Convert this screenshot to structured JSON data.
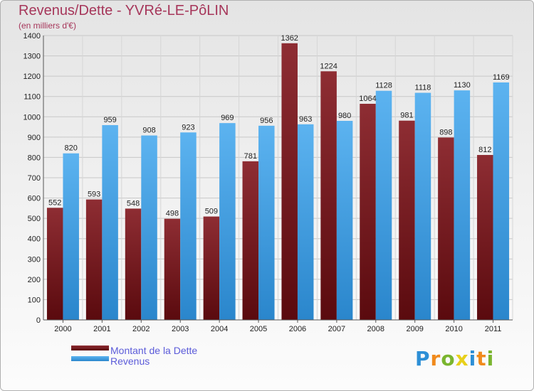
{
  "chart_data": {
    "type": "bar",
    "title": "Revenus/Dette - YVRé-LE-PôLIN",
    "subtitle": "(en milliers d'€)",
    "categories": [
      "2000",
      "2001",
      "2002",
      "2003",
      "2004",
      "2005",
      "2006",
      "2007",
      "2008",
      "2009",
      "2010",
      "2011"
    ],
    "series": [
      {
        "name": "Montant de la Dette",
        "color": "#7a1a1f",
        "values": [
          552,
          593,
          548,
          498,
          509,
          781,
          1362,
          1224,
          1064,
          981,
          898,
          812
        ]
      },
      {
        "name": "Revenus",
        "color": "#3a9fe6",
        "values": [
          820,
          959,
          908,
          923,
          969,
          956,
          963,
          980,
          1128,
          1118,
          1130,
          1169
        ]
      }
    ],
    "ylim": [
      0,
      1400
    ],
    "yticks": [
      0,
      100,
      200,
      300,
      400,
      500,
      600,
      700,
      800,
      900,
      1000,
      1100,
      1200,
      1300,
      1400
    ],
    "grid": true,
    "legend_position": "bottom-left"
  },
  "logo": {
    "letters": [
      "P",
      "r",
      "o",
      "x",
      "i",
      "t",
      "i"
    ]
  }
}
